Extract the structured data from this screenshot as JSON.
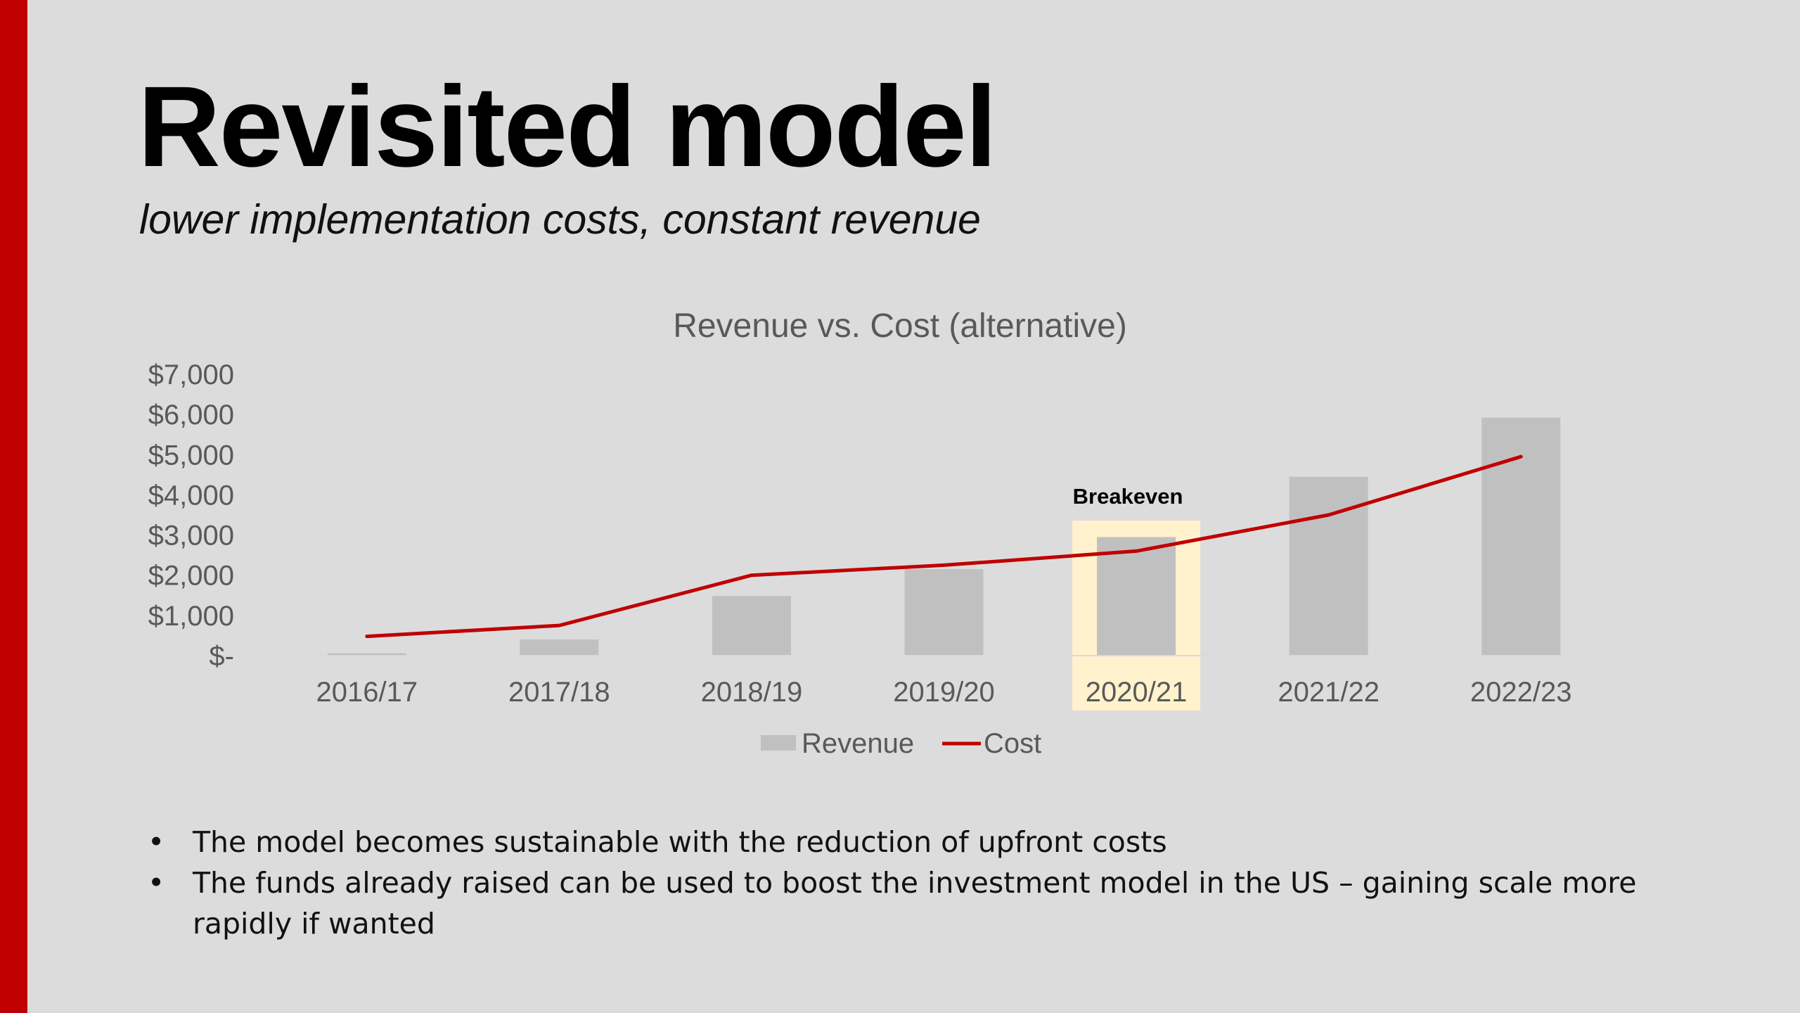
{
  "slide": {
    "title": "Revisited model",
    "subtitle": "lower implementation costs, constant revenue",
    "accent_color": "#c00000"
  },
  "bullets": [
    "The model becomes sustainable with the reduction of upfront costs",
    "The funds already raised can be used to boost the investment model in the US – gaining scale more rapidly if wanted"
  ],
  "chart_data": {
    "type": "bar+line",
    "title": "Revenue vs. Cost (alternative)",
    "categories": [
      "2016/17",
      "2017/18",
      "2018/19",
      "2019/20",
      "2020/21",
      "2021/22",
      "2022/23"
    ],
    "series": [
      {
        "name": "Revenue",
        "type": "bar",
        "color": "#c0c0c0",
        "values": [
          60,
          400,
          1480,
          2150,
          2950,
          4450,
          5920
        ]
      },
      {
        "name": "Cost",
        "type": "line",
        "color": "#c00000",
        "values": [
          480,
          750,
          2000,
          2250,
          2600,
          3500,
          4950
        ]
      }
    ],
    "y_ticks": [
      "$-",
      "$1,000",
      "$2,000",
      "$3,000",
      "$4,000",
      "$5,000",
      "$6,000",
      "$7,000"
    ],
    "ylim": [
      0,
      7000
    ],
    "legend_position": "bottom",
    "annotation": {
      "text": "Breakeven",
      "category": "2020/21",
      "highlight_color": "#fff2cc"
    },
    "grid": false
  }
}
